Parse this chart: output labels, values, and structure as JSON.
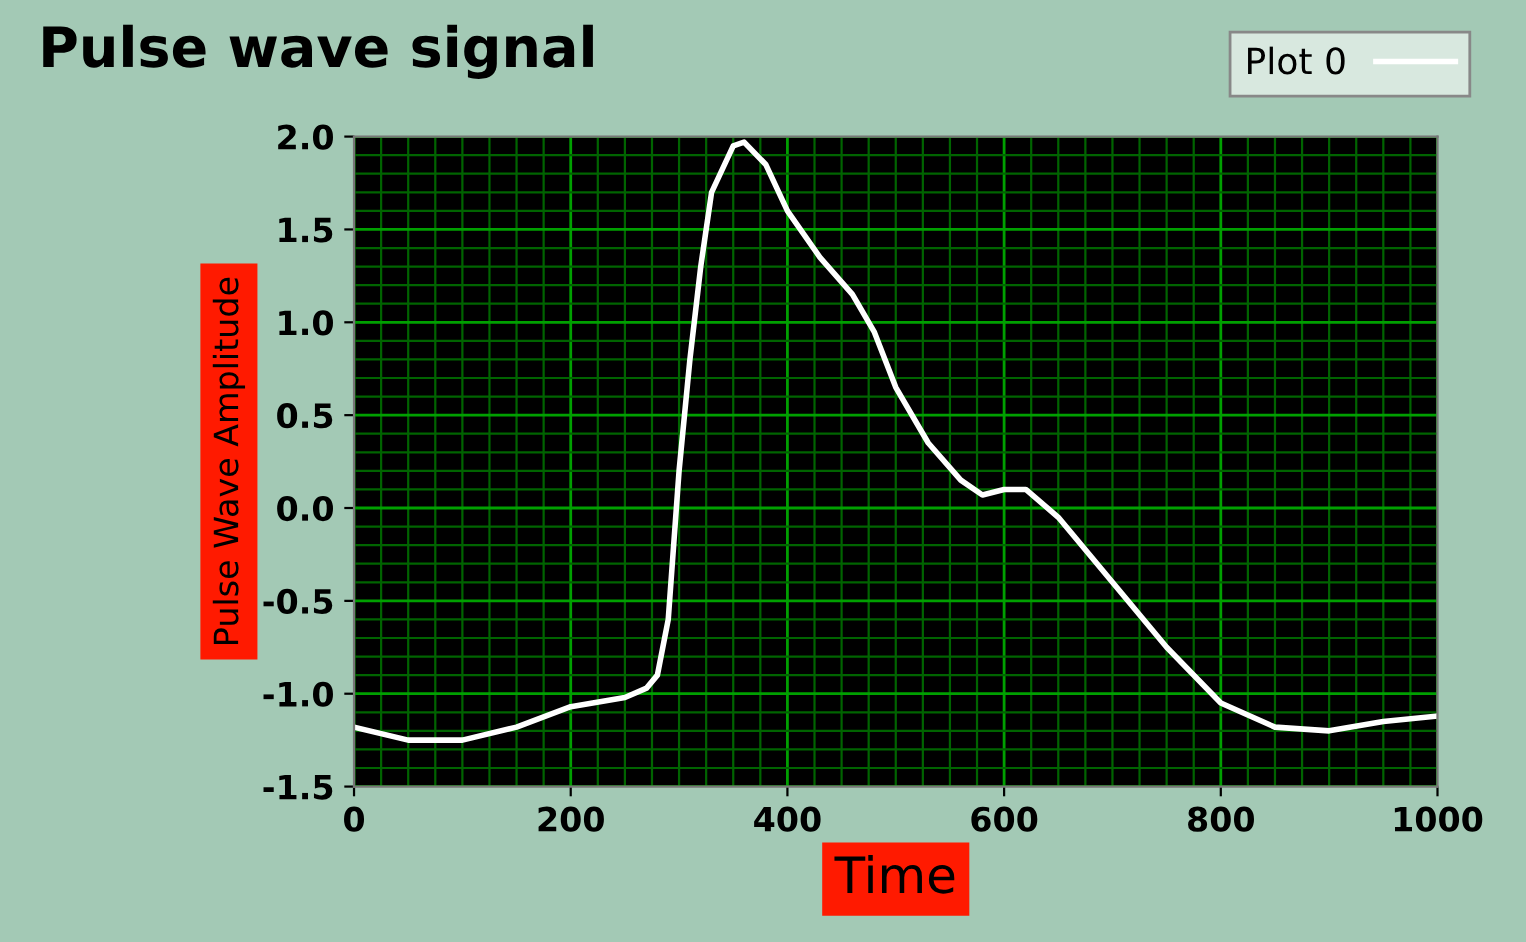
{
  "chart_data": {
    "type": "line",
    "title": "Pulse wave signal",
    "xlabel": "Time",
    "ylabel": "Pulse Wave Amplitude",
    "xlim": [
      0,
      1000
    ],
    "xticks": [
      0,
      {
        "value": 25,
        "label": null
      },
      {
        "value": 50,
        "label": null
      },
      {
        "value": 75,
        "label": null
      },
      {
        "value": 100,
        "label": null
      },
      {
        "value": 125,
        "label": null
      },
      {
        "value": 150,
        "label": null
      },
      {
        "value": 175,
        "label": null
      },
      200,
      {
        "value": 225,
        "label": null
      },
      {
        "value": 250,
        "label": null
      },
      {
        "value": 275,
        "label": null
      },
      {
        "value": 300,
        "label": null
      },
      {
        "value": 325,
        "label": null
      },
      {
        "value": 350,
        "label": null
      },
      {
        "value": 375,
        "label": null
      },
      400,
      {
        "value": 425,
        "label": null
      },
      {
        "value": 450,
        "label": null
      },
      {
        "value": 475,
        "label": null
      },
      {
        "value": 500,
        "label": null
      },
      {
        "value": 525,
        "label": null
      },
      {
        "value": 550,
        "label": null
      },
      {
        "value": 575,
        "label": null
      },
      600,
      {
        "value": 625,
        "label": null
      },
      {
        "value": 650,
        "label": null
      },
      {
        "value": 675,
        "label": null
      },
      {
        "value": 700,
        "label": null
      },
      {
        "value": 725,
        "label": null
      },
      {
        "value": 750,
        "label": null
      },
      {
        "value": 775,
        "label": null
      },
      800,
      {
        "value": 825,
        "label": null
      },
      {
        "value": 850,
        "label": null
      },
      {
        "value": 875,
        "label": null
      },
      {
        "value": 900,
        "label": null
      },
      {
        "value": 925,
        "label": null
      },
      {
        "value": 950,
        "label": null
      },
      {
        "value": 975,
        "label": null
      },
      1000
    ],
    "ylim": [
      -1.5,
      2.0
    ],
    "yticks": [
      {
        "value": -1.5,
        "label": "-1.5"
      },
      {
        "value": -1.4,
        "label": null
      },
      {
        "value": -1.3,
        "label": null
      },
      {
        "value": -1.2,
        "label": null
      },
      {
        "value": -1.1,
        "label": null
      },
      {
        "value": -1.0,
        "label": "-1.0"
      },
      {
        "value": -0.9,
        "label": null
      },
      {
        "value": -0.8,
        "label": null
      },
      {
        "value": -0.7,
        "label": null
      },
      {
        "value": -0.6,
        "label": null
      },
      {
        "value": -0.5,
        "label": "-0.5"
      },
      {
        "value": -0.4,
        "label": null
      },
      {
        "value": -0.3,
        "label": null
      },
      {
        "value": -0.2,
        "label": null
      },
      {
        "value": -0.1,
        "label": null
      },
      {
        "value": 0.0,
        "label": "0.0"
      },
      {
        "value": 0.1,
        "label": null
      },
      {
        "value": 0.2,
        "label": null
      },
      {
        "value": 0.3,
        "label": null
      },
      {
        "value": 0.4,
        "label": null
      },
      {
        "value": 0.5,
        "label": "0.5"
      },
      {
        "value": 0.6,
        "label": null
      },
      {
        "value": 0.7,
        "label": null
      },
      {
        "value": 0.8,
        "label": null
      },
      {
        "value": 0.9,
        "label": null
      },
      {
        "value": 1.0,
        "label": "1.0"
      },
      {
        "value": 1.1,
        "label": null
      },
      {
        "value": 1.2,
        "label": null
      },
      {
        "value": 1.3,
        "label": null
      },
      {
        "value": 1.4,
        "label": null
      },
      {
        "value": 1.5,
        "label": "1.5"
      },
      {
        "value": 1.6,
        "label": null
      },
      {
        "value": 1.7,
        "label": null
      },
      {
        "value": 1.8,
        "label": null
      },
      {
        "value": 1.9,
        "label": null
      },
      {
        "value": 2.0,
        "label": "2.0"
      }
    ],
    "grid": true,
    "legend": "top right",
    "series": [
      {
        "name": "Plot 0",
        "color": "#ffffff",
        "x": [
          0,
          50,
          100,
          150,
          200,
          250,
          270,
          280,
          290,
          300,
          310,
          320,
          330,
          350,
          360,
          380,
          400,
          430,
          460,
          480,
          500,
          530,
          560,
          580,
          600,
          620,
          650,
          700,
          750,
          800,
          850,
          900,
          950,
          1000
        ],
        "values": [
          -1.18,
          -1.25,
          -1.25,
          -1.18,
          -1.07,
          -1.02,
          -0.97,
          -0.9,
          -0.6,
          0.2,
          0.8,
          1.3,
          1.7,
          1.95,
          1.97,
          1.85,
          1.6,
          1.35,
          1.15,
          0.95,
          0.65,
          0.35,
          0.15,
          0.07,
          0.1,
          0.1,
          -0.05,
          -0.4,
          -0.75,
          -1.05,
          -1.18,
          -1.2,
          -1.15,
          -1.12
        ]
      }
    ]
  }
}
